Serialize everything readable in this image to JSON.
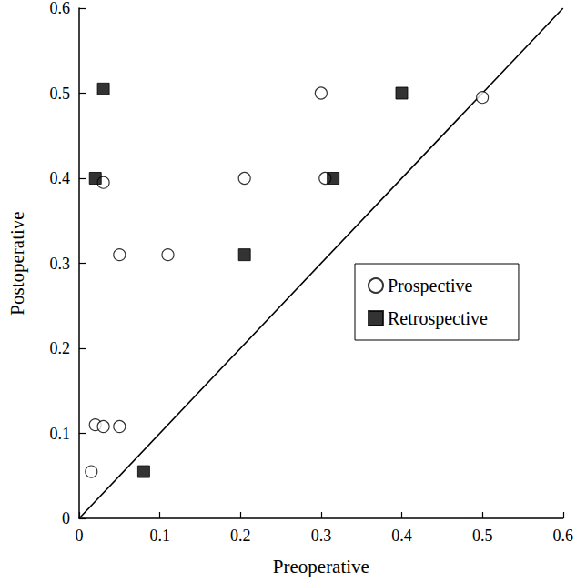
{
  "chart_data": {
    "type": "scatter",
    "x_label": "Preoperative",
    "y_label": "Postoperative",
    "xlim": [
      0,
      0.6
    ],
    "xticks": [
      0,
      0.1,
      0.2,
      0.3,
      0.4,
      0.5,
      0.6
    ],
    "ylim": [
      0,
      0.6
    ],
    "yticks": [
      0,
      0.1,
      0.2,
      0.3,
      0.4,
      0.5,
      0.6
    ],
    "grid": false,
    "legend": "right",
    "series": [
      {
        "name": "Prospective",
        "color": "#000000",
        "marker": "open_circle",
        "x": [
          0.015,
          0.02,
          0.03,
          0.05,
          0.03,
          0.05,
          0.11,
          0.205,
          0.3,
          0.305,
          0.5
        ],
        "values": [
          0.055,
          0.11,
          0.108,
          0.108,
          0.395,
          0.31,
          0.31,
          0.4,
          0.5,
          0.4,
          0.495
        ]
      },
      {
        "name": "Retrospective",
        "color": "#000000",
        "marker": "square",
        "x": [
          0.03,
          0.02,
          0.08,
          0.205,
          0.315,
          0.4
        ],
        "values": [
          0.505,
          0.4,
          0.055,
          0.31,
          0.4,
          0.5
        ]
      },
      {
        "type": "line",
        "color": "#000000",
        "line_style": "solid",
        "x": [
          0,
          0.6
        ],
        "values": [
          0,
          0.6
        ]
      }
    ]
  }
}
